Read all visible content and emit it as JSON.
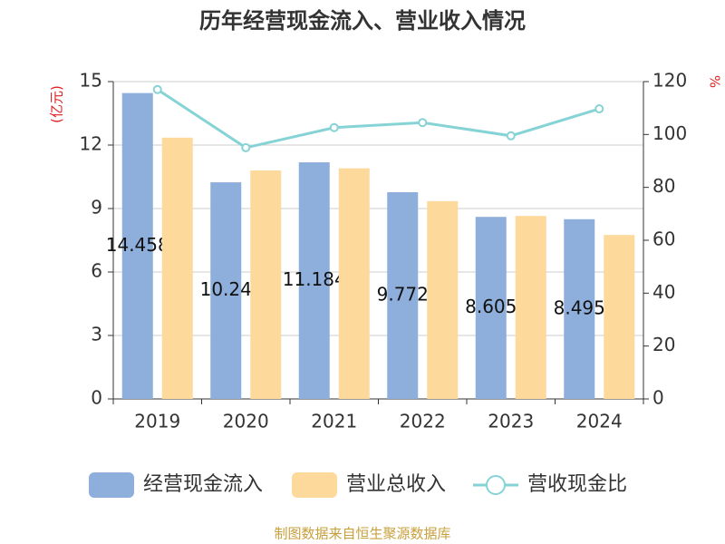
{
  "chart_data": {
    "type": "bar",
    "title": "历年经营现金流入、营业收入情况",
    "y_label": "(亿元)",
    "y2_label": "%",
    "categories": [
      "2019",
      "2020",
      "2021",
      "2022",
      "2023",
      "2024"
    ],
    "series": [
      {
        "name": "经营现金流入",
        "color": "#8eaedb",
        "values": [
          14.458,
          10.24,
          11.184,
          9.772,
          8.605,
          8.495
        ]
      },
      {
        "name": "营业总收入",
        "color": "#fdd99b",
        "values": [
          12.35,
          10.8,
          10.9,
          9.35,
          8.65,
          7.75
        ]
      },
      {
        "name": "营收现金比",
        "color": "#86d3d6",
        "type": "line",
        "axis": "y2",
        "values": [
          117,
          95,
          102.6,
          104.5,
          99.5,
          109.7
        ]
      }
    ],
    "ylim": [
      0,
      15
    ],
    "yticks": [
      0,
      3,
      6,
      9,
      12,
      15
    ],
    "y2lim": [
      0,
      120
    ],
    "y2ticks": [
      0,
      20,
      40,
      60,
      80,
      100,
      120
    ],
    "grid": true,
    "legend": "bottom",
    "source": "制图数据来自恒生聚源数据库"
  }
}
